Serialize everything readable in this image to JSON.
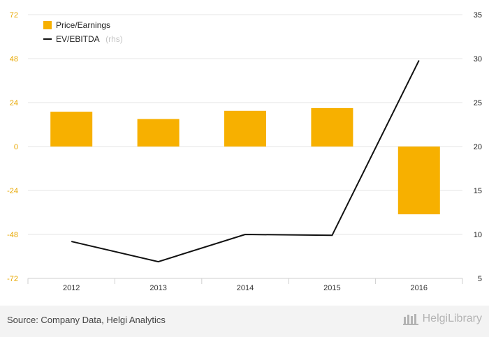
{
  "chart_data": {
    "type": "bar",
    "categories": [
      "2012",
      "2013",
      "2014",
      "2015",
      "2016"
    ],
    "series": [
      {
        "name": "Price/Earnings",
        "type": "bar",
        "axis": "left",
        "color": "#f7b000",
        "values": [
          19,
          15,
          19.5,
          21,
          -37
        ]
      },
      {
        "name": "EV/EBITDA",
        "name_suffix": "(rhs)",
        "type": "line",
        "axis": "right",
        "color": "#111111",
        "values": [
          9.2,
          6.9,
          10.0,
          9.9,
          29.8
        ]
      }
    ],
    "y_left": {
      "ylim": [
        -72,
        72
      ],
      "ticks": [
        "72",
        "48",
        "24",
        "0",
        "-24",
        "-48",
        "-72"
      ]
    },
    "y_right": {
      "ylim": [
        5,
        35
      ],
      "ticks": [
        "35",
        "30",
        "25",
        "20",
        "15",
        "10",
        "5"
      ]
    },
    "grid": true,
    "legend": "top-left"
  },
  "footer": {
    "source": "Source: Company Data, Helgi Analytics",
    "logo_text": "HelgiLibrary"
  }
}
